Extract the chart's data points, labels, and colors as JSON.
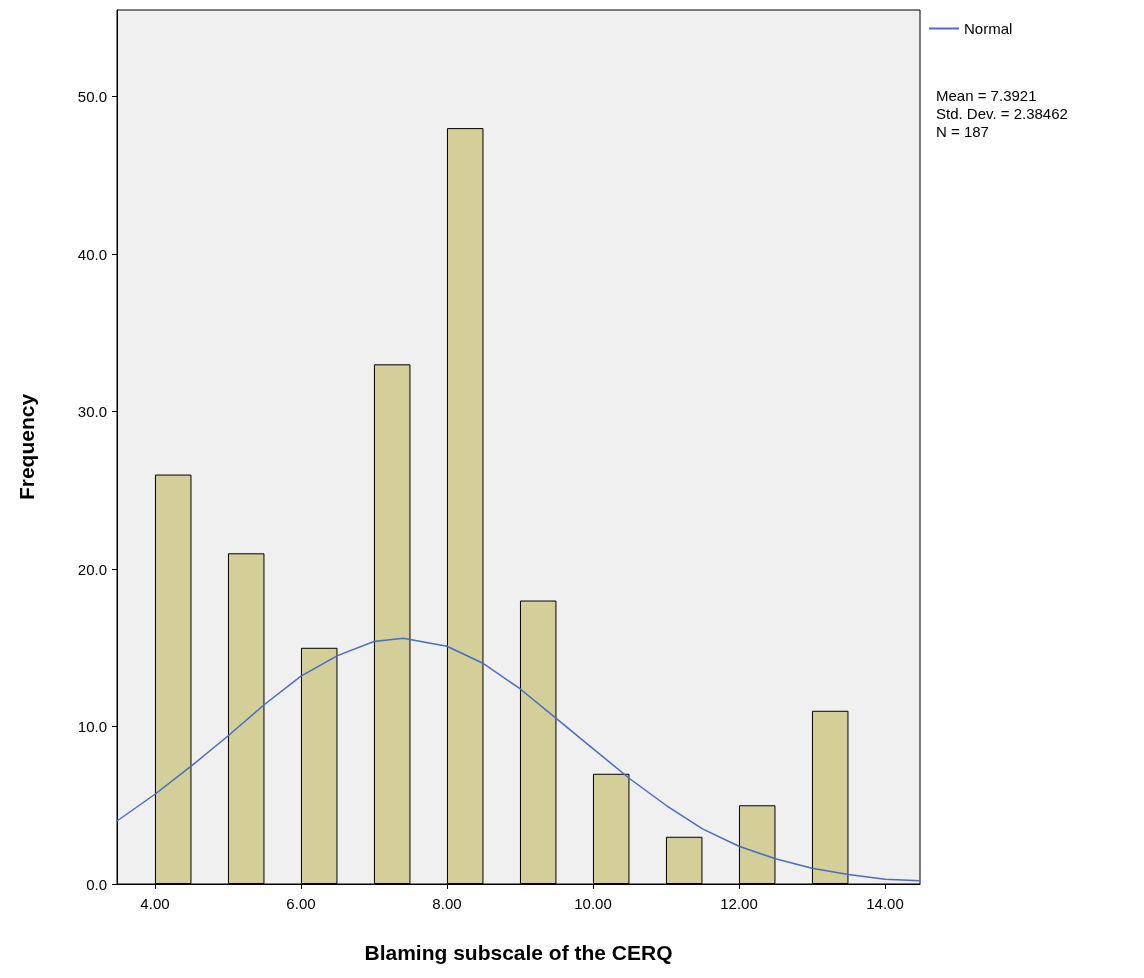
{
  "chart_data": {
    "type": "bar",
    "xlabel": "Blaming subscale of the CERQ",
    "ylabel": "Frequency",
    "x": [
      4.25,
      5.25,
      6.25,
      7.25,
      8.25,
      9.25,
      10.25,
      11.25,
      12.25,
      13.25
    ],
    "series": [
      {
        "color": "#d4cf98",
        "values": [
          26,
          21,
          15,
          33,
          48,
          18,
          7,
          3,
          5,
          11
        ]
      },
      {
        "type": "line",
        "name": "Normal",
        "color": "#4a6cc4",
        "x": [
          3.48,
          4,
          4.5,
          5,
          5.5,
          6,
          6.5,
          7,
          7.4,
          8,
          8.5,
          9,
          9.5,
          10,
          10.5,
          11,
          11.5,
          12,
          12.5,
          13,
          13.5,
          14,
          14.48
        ],
        "values": [
          4.0,
          5.7,
          7.5,
          9.4,
          11.4,
          13.2,
          14.5,
          15.4,
          15.6,
          15.1,
          14.0,
          12.4,
          10.5,
          8.6,
          6.7,
          5.0,
          3.5,
          2.4,
          1.6,
          1.0,
          0.6,
          0.3,
          0.2
        ]
      }
    ],
    "xlim": [
      3.48,
      14.48
    ],
    "xticks": [
      {
        "value": 4,
        "label": "4.00"
      },
      {
        "value": 6,
        "label": "6.00"
      },
      {
        "value": 8,
        "label": "8.00"
      },
      {
        "value": 10,
        "label": "10.00"
      },
      {
        "value": 12,
        "label": "12.00"
      },
      {
        "value": 14,
        "label": "14.00"
      }
    ],
    "ylim": [
      0,
      55.5
    ],
    "yticks": [
      {
        "value": 0,
        "label": "0.0"
      },
      {
        "value": 10,
        "label": "10.0"
      },
      {
        "value": 20,
        "label": "20.0"
      },
      {
        "value": 30,
        "label": "30.0"
      },
      {
        "value": 40,
        "label": "40.0"
      },
      {
        "value": 50,
        "label": "50.0"
      }
    ],
    "grid": false,
    "legend": "top right",
    "marker": "none",
    "line_style": "solid",
    "annotations": [
      "Mean = 7.3921",
      "Std. Dev. = 2.38462",
      "N = 187"
    ]
  }
}
